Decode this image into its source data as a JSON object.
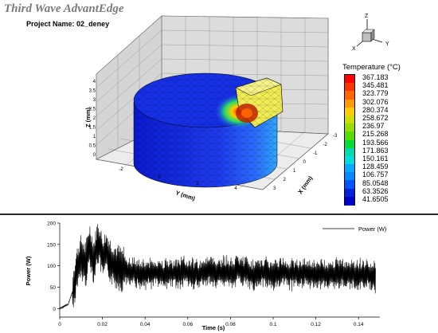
{
  "header": {
    "app_title": "Third Wave AdvantEdge",
    "project_label": "Project Name:",
    "project_name": "02_deney"
  },
  "axes_gizmo": {
    "z": "Z",
    "x": "X",
    "y": "Y"
  },
  "view3d": {
    "y_axis_label": "Y (mm)",
    "x_axis_label": "X (mm)",
    "z_axis_label": "Z (mm)",
    "z_ticks": [
      "0",
      "0.5",
      "1",
      "1.5",
      "2",
      "2.5",
      "3",
      "3.5",
      "4"
    ],
    "y_ticks": [
      "-2",
      "0",
      "2",
      "4"
    ],
    "x_ticks": [
      "-3",
      "-2",
      "-1",
      "0",
      "1",
      "2",
      "3"
    ]
  },
  "temperature_legend": {
    "title": "Temperature (°C)",
    "values": [
      "367.183",
      "345.481",
      "323.779",
      "302.076",
      "280.374",
      "258.672",
      "236.97",
      "215.268",
      "193.566",
      "171.863",
      "150.161",
      "128.459",
      "106.757",
      "85.0548",
      "63.3526",
      "41.6505"
    ],
    "colors": [
      "#ff0000",
      "#ff3300",
      "#ff6600",
      "#ff9900",
      "#ffcc00",
      "#ccdd00",
      "#99dd00",
      "#55dd00",
      "#00dd33",
      "#00ddaa",
      "#00dddd",
      "#00aaff",
      "#0088ff",
      "#0055ff",
      "#0022dd",
      "#0000cc"
    ]
  },
  "power_plot": {
    "legend_label": "Power (W)",
    "xlabel": "Time (s)",
    "ylabel": "Power (W)",
    "xticks": [
      "0",
      "0.02",
      "0.04",
      "0.06",
      "0.08",
      "0.1",
      "0.12",
      "0.14"
    ],
    "yticks": [
      "0",
      "50",
      "100",
      "150",
      "200"
    ]
  },
  "chart_data": {
    "type": "line",
    "title": "",
    "xlabel": "Time (s)",
    "ylabel": "Power (W)",
    "xlim": [
      0,
      0.15
    ],
    "ylim": [
      -20,
      200
    ],
    "series": [
      {
        "name": "Power (W)",
        "x": [
          0,
          0.002,
          0.004,
          0.006,
          0.008,
          0.01,
          0.012,
          0.014,
          0.016,
          0.018,
          0.02,
          0.022,
          0.024,
          0.026,
          0.028,
          0.03,
          0.035,
          0.04,
          0.045,
          0.05,
          0.055,
          0.06,
          0.065,
          0.07,
          0.075,
          0.08,
          0.085,
          0.09,
          0.095,
          0.1,
          0.105,
          0.11,
          0.115,
          0.12,
          0.125,
          0.13,
          0.135,
          0.14,
          0.148
        ],
        "y": [
          0,
          5,
          10,
          40,
          90,
          120,
          100,
          150,
          110,
          160,
          120,
          130,
          110,
          100,
          95,
          90,
          85,
          80,
          85,
          80,
          85,
          85,
          80,
          90,
          85,
          85,
          90,
          80,
          85,
          80,
          85,
          80,
          85,
          80,
          80,
          85,
          80,
          80,
          75
        ]
      }
    ]
  }
}
